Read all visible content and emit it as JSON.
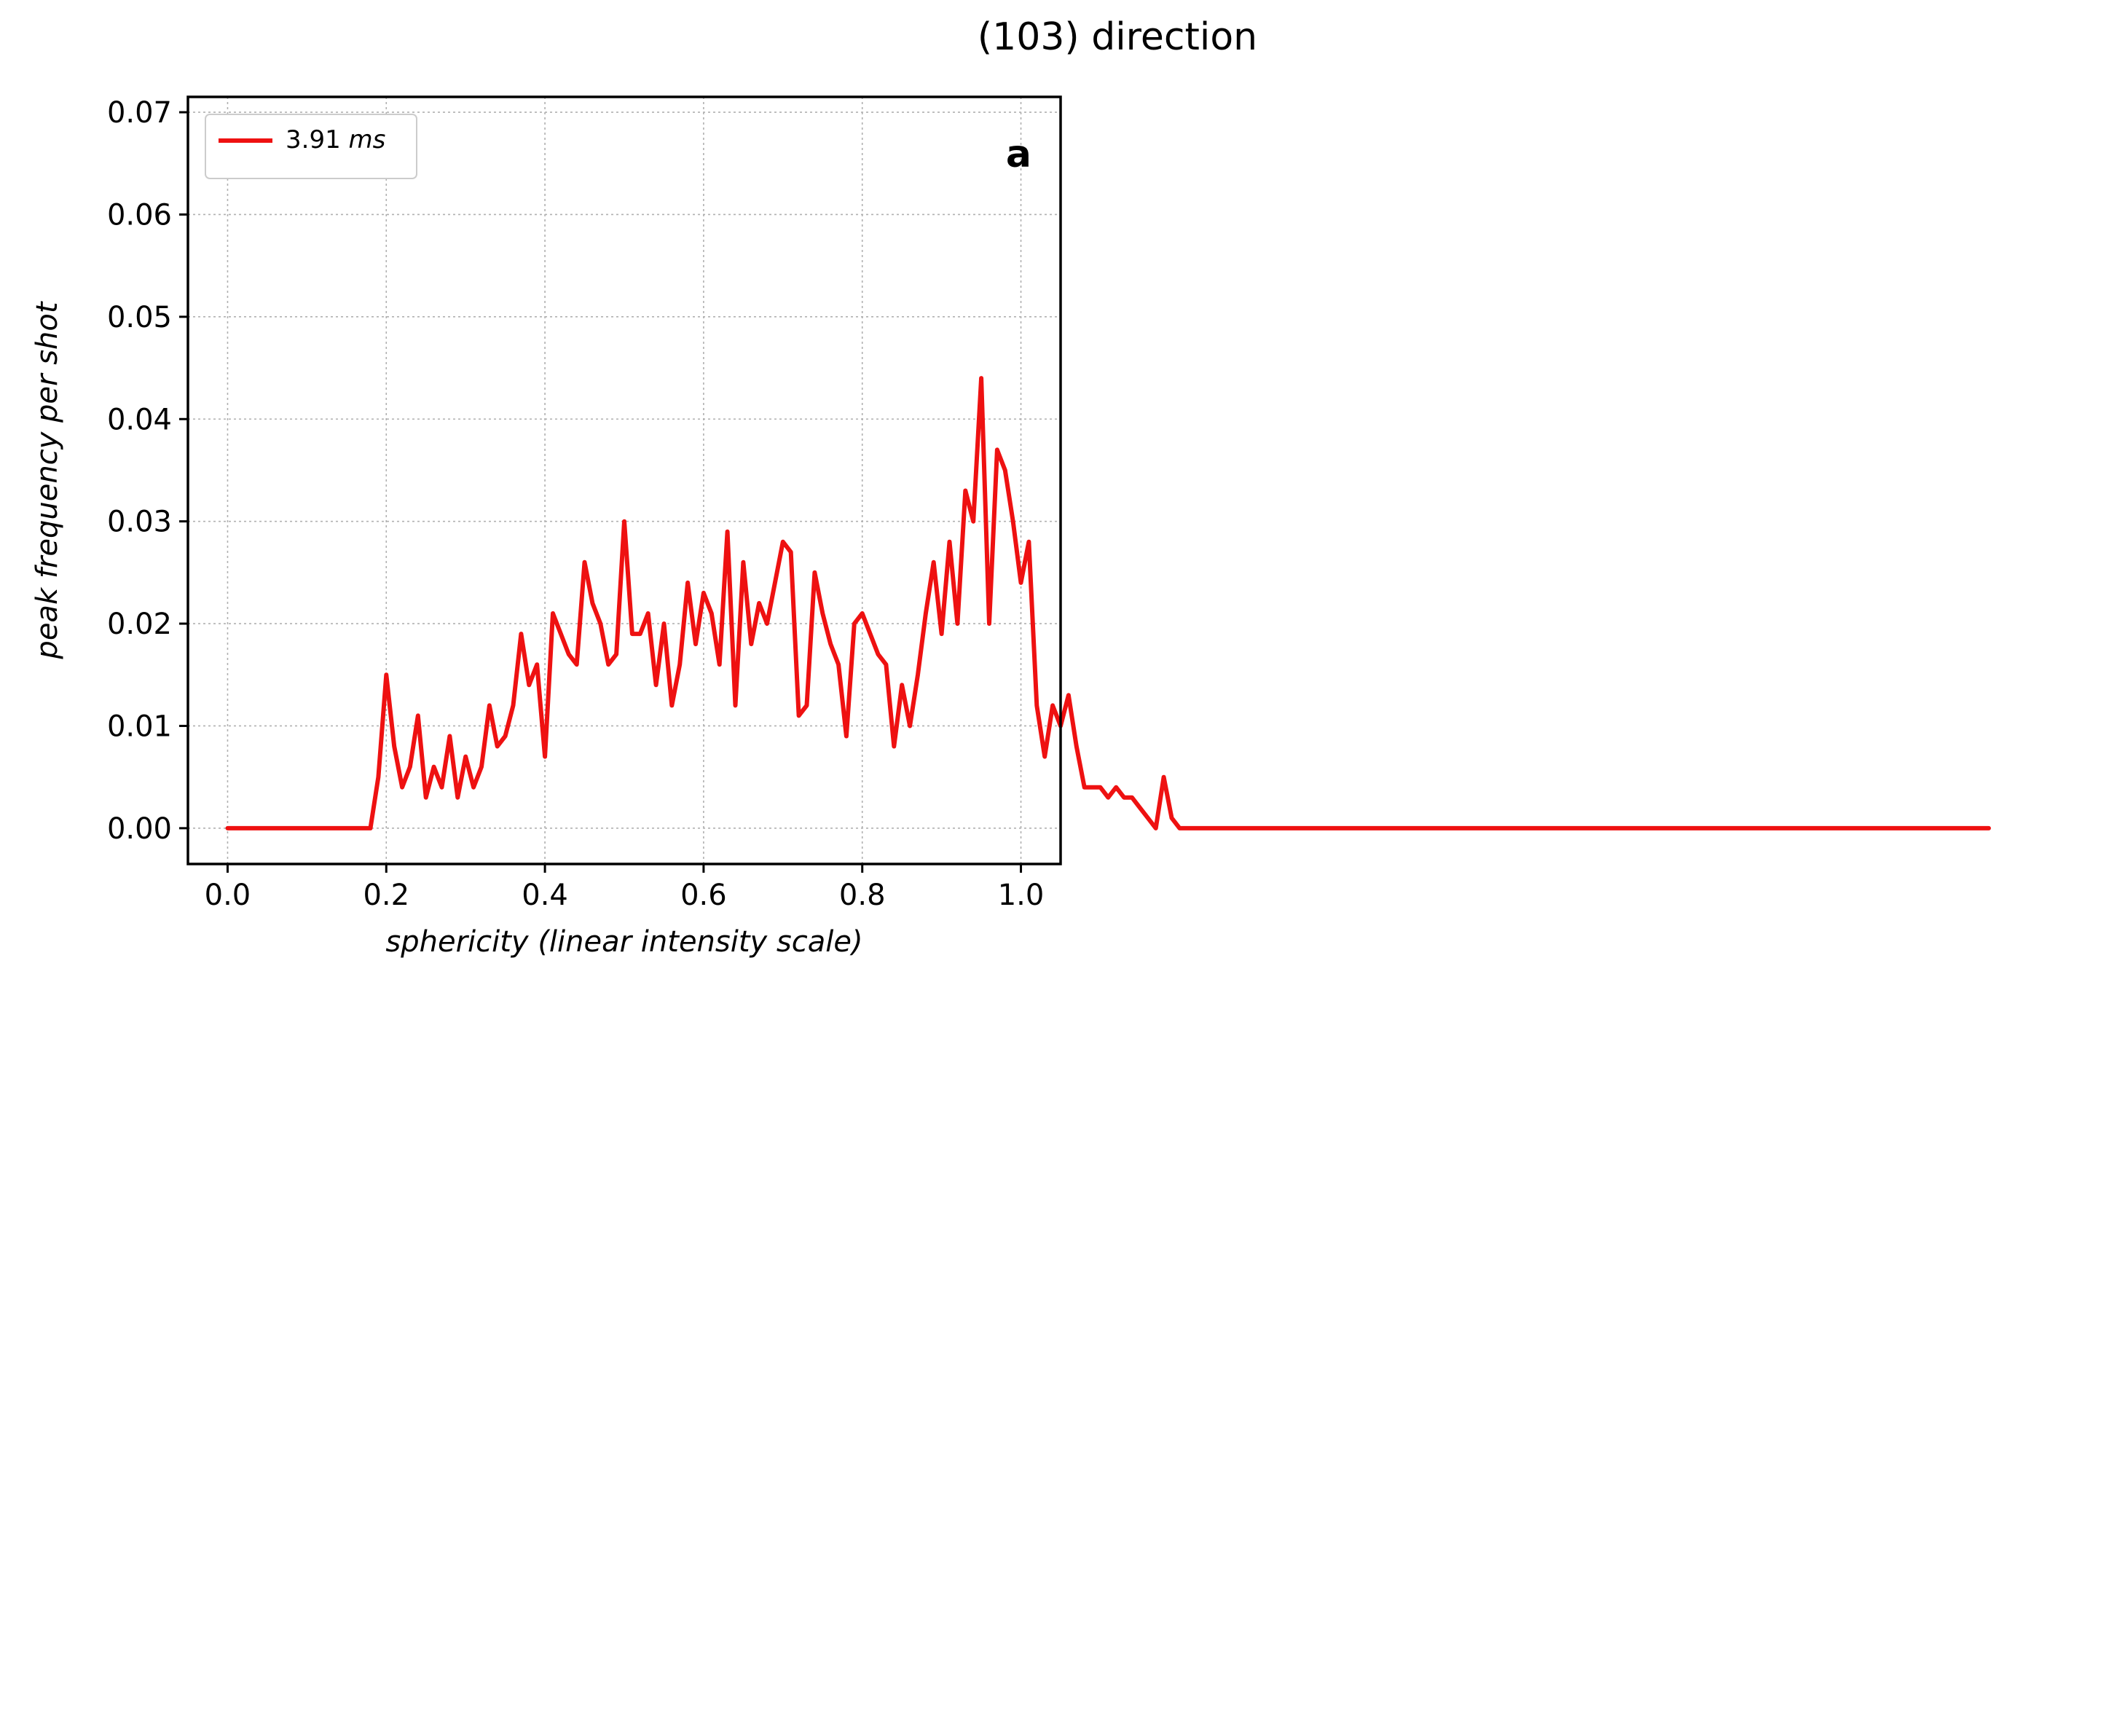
{
  "figure": {
    "title": "(103) direction",
    "colors": {
      "red": "#ee1111",
      "green": "#228b22",
      "blue": "#1144dd"
    }
  },
  "chart_data": [
    {
      "type": "line",
      "panel_label": "a",
      "title": "",
      "xlabel_parts": [
        "sphericity (",
        "linear",
        " intensity scale)"
      ],
      "ylabel": "peak frequency per shot",
      "xlim": [
        -0.05,
        1.05
      ],
      "ylim": [
        -0.0035,
        0.0715
      ],
      "xticks": [
        0.0,
        0.2,
        0.4,
        0.6,
        0.8,
        1.0
      ],
      "xtick_labels": [
        "0.0",
        "0.2",
        "0.4",
        "0.6",
        "0.8",
        "1.0"
      ],
      "yticks": [
        0.0,
        0.01,
        0.02,
        0.03,
        0.04,
        0.05,
        0.06,
        0.07
      ],
      "ytick_labels": [
        "0.00",
        "0.01",
        "0.02",
        "0.03",
        "0.04",
        "0.05",
        "0.06",
        "0.07"
      ],
      "grid": true,
      "legend_position": "top-left",
      "x_step": 0.01,
      "series": [
        {
          "name_value": "3.91",
          "name_unit": "ms",
          "color": "#ee1111",
          "values": [
            0,
            0,
            0,
            0,
            0,
            0,
            0,
            0,
            0,
            0,
            0,
            0,
            0,
            0,
            0,
            0,
            0,
            0,
            0,
            0.005,
            0.015,
            0.008,
            0.004,
            0.006,
            0.011,
            0.003,
            0.006,
            0.004,
            0.009,
            0.003,
            0.007,
            0.004,
            0.006,
            0.012,
            0.008,
            0.009,
            0.012,
            0.019,
            0.014,
            0.016,
            0.007,
            0.021,
            0.019,
            0.017,
            0.016,
            0.026,
            0.022,
            0.02,
            0.016,
            0.017,
            0.03,
            0.019,
            0.019,
            0.021,
            0.014,
            0.02,
            0.012,
            0.016,
            0.024,
            0.018,
            0.023,
            0.021,
            0.016,
            0.029,
            0.012,
            0.026,
            0.018,
            0.022,
            0.02,
            0.024,
            0.028,
            0.027,
            0.011,
            0.012,
            0.025,
            0.021,
            0.018,
            0.016,
            0.009,
            0.02,
            0.021,
            0.019,
            0.017,
            0.016,
            0.008,
            0.014,
            0.01,
            0.015,
            0.021,
            0.026,
            0.019,
            0.028,
            0.02,
            0.033,
            0.03,
            0.044,
            0.02,
            0.037,
            0.035,
            0.03,
            0.024,
            0.028,
            0.012,
            0.007,
            0.012,
            0.01,
            0.013,
            0.008,
            0.004,
            0.004,
            0.004,
            0.003,
            0.004,
            0.003,
            0.003,
            0.002,
            0.001,
            0.0,
            0.005,
            0.001,
            0,
            0,
            0,
            0,
            0,
            0,
            0,
            0,
            0,
            0,
            0,
            0,
            0,
            0,
            0,
            0,
            0,
            0,
            0,
            0,
            0,
            0,
            0,
            0,
            0,
            0,
            0,
            0,
            0,
            0,
            0,
            0,
            0,
            0,
            0,
            0,
            0,
            0,
            0,
            0,
            0,
            0,
            0,
            0,
            0,
            0,
            0,
            0,
            0,
            0,
            0,
            0,
            0,
            0,
            0,
            0,
            0,
            0,
            0,
            0,
            0,
            0,
            0,
            0,
            0,
            0,
            0,
            0,
            0,
            0,
            0,
            0,
            0,
            0,
            0,
            0,
            0,
            0,
            0,
            0,
            0,
            0,
            0,
            0,
            0,
            0,
            0,
            0,
            0,
            0,
            0,
            0,
            0,
            0,
            0,
            0,
            0,
            0,
            0,
            0,
            0,
            0,
            0
          ]
        }
      ]
    }
  ]
}
